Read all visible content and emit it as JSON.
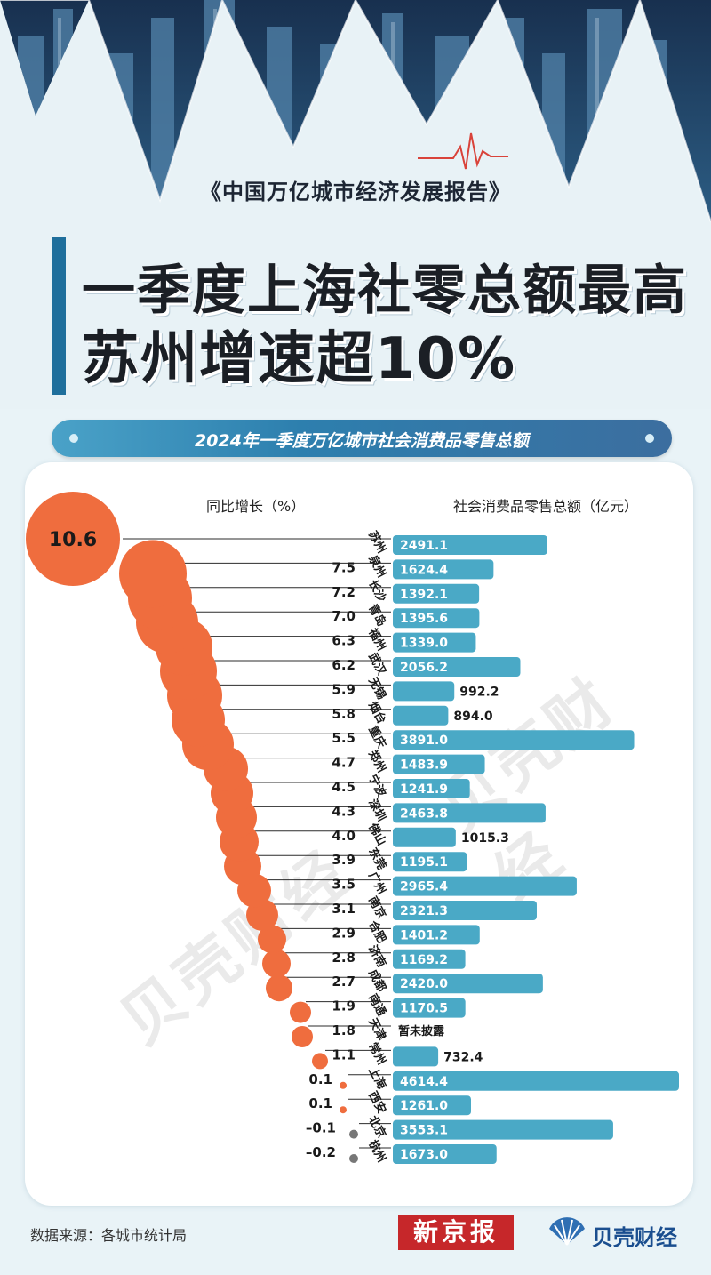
{
  "header": {
    "report_title": "《中国万亿城市经济发展报告》",
    "headline_line1": "一季度上海社零总额最高",
    "headline_line2": "苏州增速超10%"
  },
  "banner": {
    "text": "2024年一季度万亿城市社会消费品零售总额"
  },
  "columns": {
    "growth_title": "同比增长（%）",
    "total_title": "社会消费品零售总额（亿元）"
  },
  "footer": {
    "source": "数据来源：各城市统计局",
    "logo_xjb": "新京报",
    "logo_bk": "贝壳财经"
  },
  "watermark": {
    "text": "贝壳财经"
  },
  "colors": {
    "bubble": "#ef6d3e",
    "bubble_negative": "#777777",
    "bar": "#4aa9c6",
    "headline_bar": "#1f6f9c",
    "banner": "#2d7fae"
  },
  "chart_data": {
    "type": "bar",
    "categories": [
      "苏州",
      "泉州",
      "长沙",
      "青岛",
      "福州",
      "武汉",
      "无锡",
      "烟台",
      "重庆",
      "郑州",
      "宁波",
      "深圳",
      "佛山",
      "东莞",
      "广州",
      "南京",
      "合肥",
      "济南",
      "成都",
      "南通",
      "天津",
      "常州",
      "上海",
      "西安",
      "北京",
      "杭州"
    ],
    "series": [
      {
        "name": "同比增长（%）",
        "values": [
          10.6,
          7.5,
          7.2,
          7.0,
          6.3,
          6.2,
          5.9,
          5.8,
          5.5,
          4.7,
          4.5,
          4.3,
          4.0,
          3.9,
          3.5,
          3.1,
          2.9,
          2.8,
          2.7,
          1.9,
          1.8,
          1.1,
          0.1,
          0.1,
          -0.1,
          -0.2
        ],
        "labels": [
          "10.6",
          "7.5",
          "7.2",
          "7.0",
          "6.3",
          "6.2",
          "5.9",
          "5.8",
          "5.5",
          "4.7",
          "4.5",
          "4.3",
          "4.0",
          "3.9",
          "3.5",
          "3.1",
          "2.9",
          "2.8",
          "2.7",
          "1.9",
          "1.8",
          "1.1",
          "0.1",
          "0.1",
          "–0.1",
          "–0.2"
        ]
      },
      {
        "name": "社会消费品零售总额（亿元）",
        "values": [
          2491.1,
          1624.4,
          1392.1,
          1395.6,
          1339.0,
          2056.2,
          992.2,
          894.0,
          3891.0,
          1483.9,
          1241.9,
          2463.8,
          1015.3,
          1195.1,
          2965.4,
          2321.3,
          1401.2,
          1169.2,
          2420.0,
          1170.5,
          null,
          732.4,
          4614.4,
          1261.0,
          3553.1,
          1673.0
        ],
        "labels": [
          "2491.1",
          "1624.4",
          "1392.1",
          "1395.6",
          "1339.0",
          "2056.2",
          "992.2",
          "894.0",
          "3891.0",
          "1483.9",
          "1241.9",
          "2463.8",
          "1015.3",
          "1195.1",
          "2965.4",
          "2321.3",
          "1401.2",
          "1169.2",
          "2420.0",
          "1170.5",
          "暂未披露",
          "732.4",
          "4614.4",
          "1261.0",
          "3553.1",
          "1673.0"
        ]
      }
    ]
  }
}
